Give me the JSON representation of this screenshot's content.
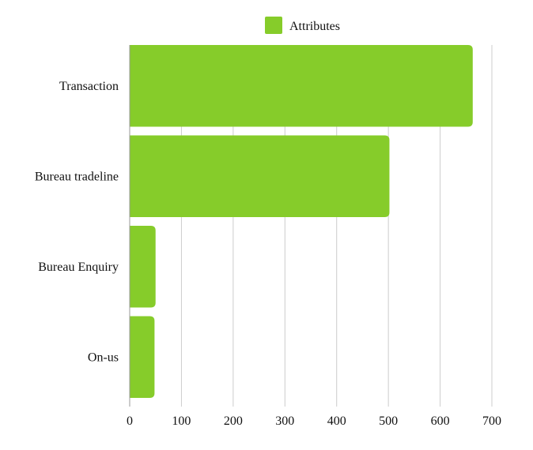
{
  "chart_data": {
    "type": "bar",
    "orientation": "horizontal",
    "categories": [
      "Transaction",
      "Bureau tradeline",
      "Bureau Enquiry",
      "On-us"
    ],
    "series": [
      {
        "name": "Attributes",
        "values": [
          663,
          502,
          50,
          48
        ],
        "color": "#86cc2a"
      }
    ],
    "xlim": [
      0,
      700
    ],
    "xticks": [
      0,
      100,
      200,
      300,
      400,
      500,
      600,
      700
    ],
    "grid": "vertical",
    "legend_position": "top-center",
    "title": "",
    "xlabel": "",
    "ylabel": ""
  }
}
